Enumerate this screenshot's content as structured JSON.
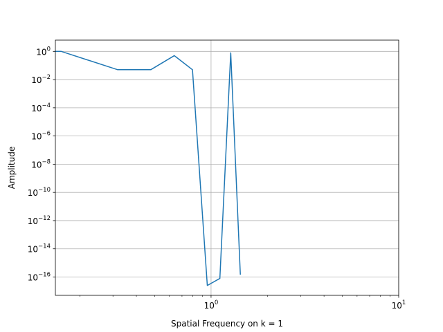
{
  "chart_data": {
    "type": "line",
    "title": "",
    "xlabel": "Spatial Frequency on k = 1",
    "ylabel": "Amplitude",
    "xscale": "log",
    "yscale": "log",
    "xlim": [
      0.148,
      10
    ],
    "ylim_exponent": [
      -17.3,
      0.8
    ],
    "grid": "on (major gridlines, both axes)",
    "legend": "none",
    "line_color": "#1f77b4",
    "x_tick_labels": [
      {
        "value": 1,
        "base": "10",
        "exp": "0"
      },
      {
        "value": 10,
        "base": "10",
        "exp": "1"
      }
    ],
    "y_tick_labels": [
      {
        "exp_value": 0,
        "base": "10",
        "exp": "0"
      },
      {
        "exp_value": -2,
        "base": "10",
        "exp": "−2"
      },
      {
        "exp_value": -4,
        "base": "10",
        "exp": "−4"
      },
      {
        "exp_value": -6,
        "base": "10",
        "exp": "−6"
      },
      {
        "exp_value": -8,
        "base": "10",
        "exp": "−8"
      },
      {
        "exp_value": -10,
        "base": "10",
        "exp": "−10"
      },
      {
        "exp_value": -12,
        "base": "10",
        "exp": "−12"
      },
      {
        "exp_value": -14,
        "base": "10",
        "exp": "−14"
      },
      {
        "exp_value": -16,
        "base": "10",
        "exp": "−16"
      }
    ],
    "series": [
      {
        "x": [
          0.148,
          0.159,
          0.318,
          0.477,
          0.637,
          0.796,
          0.955,
          1.114,
          1.273,
          1.432
        ],
        "y_exponent": [
          0.0,
          0.0,
          -1.3,
          -1.3,
          -0.3,
          -1.3,
          -16.6,
          -16.1,
          -0.1,
          -15.8
        ]
      }
    ]
  }
}
